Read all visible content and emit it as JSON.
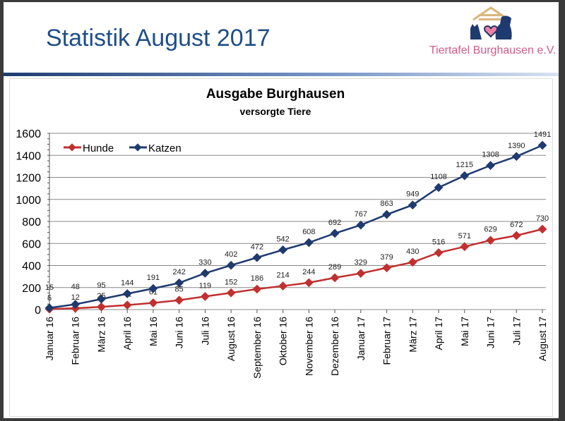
{
  "slide": {
    "title": "Statistik August 2017",
    "organization": "Tiertafel Burghausen e.V."
  },
  "colors": {
    "hunde": "#c0302f",
    "katzen": "#1f3a6e"
  },
  "chart_data": {
    "type": "line",
    "title": "Ausgabe Burghausen",
    "subtitle": "versorgte Tiere",
    "xlabel": "",
    "ylabel": "",
    "ylim": [
      0,
      1600
    ],
    "yticks": [
      0,
      200,
      400,
      600,
      800,
      1000,
      1200,
      1400,
      1600
    ],
    "grid": true,
    "legend": "top-left",
    "categories": [
      "Januar 16",
      "Februar 16",
      "März 16",
      "April 16",
      "Mai 16",
      "Juni 16",
      "Juli 16",
      "August 16",
      "September 16",
      "Oktober 16",
      "November 16",
      "Dezember 16",
      "Januar 17",
      "Februar 17",
      "März 17",
      "April 17",
      "Mai 17",
      "Juni 17",
      "Juli 17",
      "August 17"
    ],
    "series": [
      {
        "name": "Hunde",
        "values": [
          5,
          12,
          25,
          41,
          61,
          85,
          119,
          152,
          186,
          214,
          244,
          289,
          329,
          379,
          430,
          516,
          571,
          629,
          672,
          730
        ]
      },
      {
        "name": "Katzen",
        "values": [
          15,
          48,
          95,
          144,
          191,
          242,
          330,
          402,
          472,
          542,
          608,
          692,
          767,
          863,
          949,
          1108,
          1215,
          1308,
          1390,
          1491
        ]
      }
    ]
  }
}
